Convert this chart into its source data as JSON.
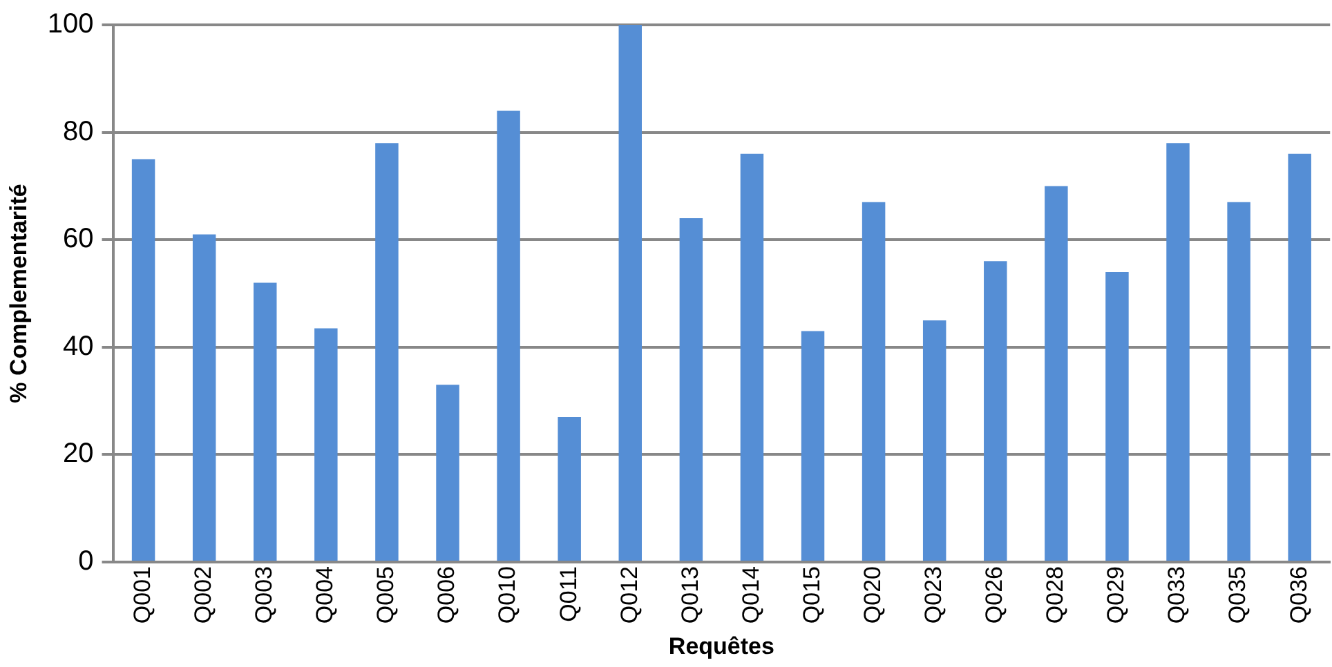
{
  "chart_data": {
    "type": "bar",
    "xlabel": "Requêtes",
    "ylabel": "% Complementarité",
    "categories": [
      "Q001",
      "Q002",
      "Q003",
      "Q004",
      "Q005",
      "Q006",
      "Q010",
      "Q011",
      "Q012",
      "Q013",
      "Q014",
      "Q015",
      "Q020",
      "Q023",
      "Q026",
      "Q028",
      "Q029",
      "Q033",
      "Q035",
      "Q036"
    ],
    "values": [
      75,
      61,
      52,
      43.5,
      78,
      33,
      84,
      27,
      100,
      64,
      76,
      43,
      67,
      45,
      56,
      70,
      54,
      78,
      67,
      76
    ],
    "color": "#558ed5",
    "ylim": [
      0,
      100
    ],
    "yticks": [
      0,
      20,
      40,
      60,
      80,
      100
    ],
    "grid": "y",
    "legend": false
  }
}
